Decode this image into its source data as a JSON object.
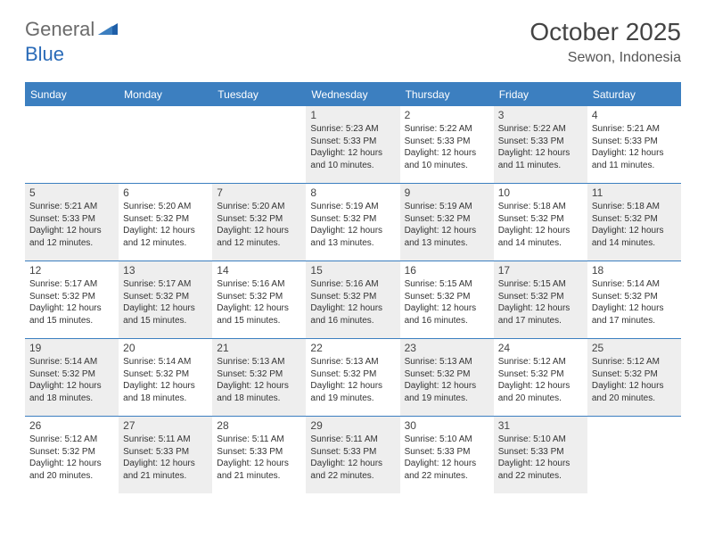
{
  "brand": {
    "part1": "General",
    "part2": "Blue"
  },
  "title": "October 2025",
  "location": "Sewon, Indonesia",
  "colors": {
    "header_bg": "#3c7fc0",
    "header_text": "#ffffff",
    "odd_bg": "#eeeeee",
    "even_bg": "#ffffff",
    "border": "#3c7fc0",
    "brand_gray": "#6b6b6b",
    "brand_blue": "#2a6bb8"
  },
  "weekdays": [
    "Sunday",
    "Monday",
    "Tuesday",
    "Wednesday",
    "Thursday",
    "Friday",
    "Saturday"
  ],
  "weeks": [
    [
      {
        "blank": true
      },
      {
        "blank": true
      },
      {
        "blank": true
      },
      {
        "day": "1",
        "sunrise": "Sunrise: 5:23 AM",
        "sunset": "Sunset: 5:33 PM",
        "daylight": "Daylight: 12 hours and 10 minutes."
      },
      {
        "day": "2",
        "sunrise": "Sunrise: 5:22 AM",
        "sunset": "Sunset: 5:33 PM",
        "daylight": "Daylight: 12 hours and 10 minutes."
      },
      {
        "day": "3",
        "sunrise": "Sunrise: 5:22 AM",
        "sunset": "Sunset: 5:33 PM",
        "daylight": "Daylight: 12 hours and 11 minutes."
      },
      {
        "day": "4",
        "sunrise": "Sunrise: 5:21 AM",
        "sunset": "Sunset: 5:33 PM",
        "daylight": "Daylight: 12 hours and 11 minutes."
      }
    ],
    [
      {
        "day": "5",
        "sunrise": "Sunrise: 5:21 AM",
        "sunset": "Sunset: 5:33 PM",
        "daylight": "Daylight: 12 hours and 12 minutes."
      },
      {
        "day": "6",
        "sunrise": "Sunrise: 5:20 AM",
        "sunset": "Sunset: 5:32 PM",
        "daylight": "Daylight: 12 hours and 12 minutes."
      },
      {
        "day": "7",
        "sunrise": "Sunrise: 5:20 AM",
        "sunset": "Sunset: 5:32 PM",
        "daylight": "Daylight: 12 hours and 12 minutes."
      },
      {
        "day": "8",
        "sunrise": "Sunrise: 5:19 AM",
        "sunset": "Sunset: 5:32 PM",
        "daylight": "Daylight: 12 hours and 13 minutes."
      },
      {
        "day": "9",
        "sunrise": "Sunrise: 5:19 AM",
        "sunset": "Sunset: 5:32 PM",
        "daylight": "Daylight: 12 hours and 13 minutes."
      },
      {
        "day": "10",
        "sunrise": "Sunrise: 5:18 AM",
        "sunset": "Sunset: 5:32 PM",
        "daylight": "Daylight: 12 hours and 14 minutes."
      },
      {
        "day": "11",
        "sunrise": "Sunrise: 5:18 AM",
        "sunset": "Sunset: 5:32 PM",
        "daylight": "Daylight: 12 hours and 14 minutes."
      }
    ],
    [
      {
        "day": "12",
        "sunrise": "Sunrise: 5:17 AM",
        "sunset": "Sunset: 5:32 PM",
        "daylight": "Daylight: 12 hours and 15 minutes."
      },
      {
        "day": "13",
        "sunrise": "Sunrise: 5:17 AM",
        "sunset": "Sunset: 5:32 PM",
        "daylight": "Daylight: 12 hours and 15 minutes."
      },
      {
        "day": "14",
        "sunrise": "Sunrise: 5:16 AM",
        "sunset": "Sunset: 5:32 PM",
        "daylight": "Daylight: 12 hours and 15 minutes."
      },
      {
        "day": "15",
        "sunrise": "Sunrise: 5:16 AM",
        "sunset": "Sunset: 5:32 PM",
        "daylight": "Daylight: 12 hours and 16 minutes."
      },
      {
        "day": "16",
        "sunrise": "Sunrise: 5:15 AM",
        "sunset": "Sunset: 5:32 PM",
        "daylight": "Daylight: 12 hours and 16 minutes."
      },
      {
        "day": "17",
        "sunrise": "Sunrise: 5:15 AM",
        "sunset": "Sunset: 5:32 PM",
        "daylight": "Daylight: 12 hours and 17 minutes."
      },
      {
        "day": "18",
        "sunrise": "Sunrise: 5:14 AM",
        "sunset": "Sunset: 5:32 PM",
        "daylight": "Daylight: 12 hours and 17 minutes."
      }
    ],
    [
      {
        "day": "19",
        "sunrise": "Sunrise: 5:14 AM",
        "sunset": "Sunset: 5:32 PM",
        "daylight": "Daylight: 12 hours and 18 minutes."
      },
      {
        "day": "20",
        "sunrise": "Sunrise: 5:14 AM",
        "sunset": "Sunset: 5:32 PM",
        "daylight": "Daylight: 12 hours and 18 minutes."
      },
      {
        "day": "21",
        "sunrise": "Sunrise: 5:13 AM",
        "sunset": "Sunset: 5:32 PM",
        "daylight": "Daylight: 12 hours and 18 minutes."
      },
      {
        "day": "22",
        "sunrise": "Sunrise: 5:13 AM",
        "sunset": "Sunset: 5:32 PM",
        "daylight": "Daylight: 12 hours and 19 minutes."
      },
      {
        "day": "23",
        "sunrise": "Sunrise: 5:13 AM",
        "sunset": "Sunset: 5:32 PM",
        "daylight": "Daylight: 12 hours and 19 minutes."
      },
      {
        "day": "24",
        "sunrise": "Sunrise: 5:12 AM",
        "sunset": "Sunset: 5:32 PM",
        "daylight": "Daylight: 12 hours and 20 minutes."
      },
      {
        "day": "25",
        "sunrise": "Sunrise: 5:12 AM",
        "sunset": "Sunset: 5:32 PM",
        "daylight": "Daylight: 12 hours and 20 minutes."
      }
    ],
    [
      {
        "day": "26",
        "sunrise": "Sunrise: 5:12 AM",
        "sunset": "Sunset: 5:32 PM",
        "daylight": "Daylight: 12 hours and 20 minutes."
      },
      {
        "day": "27",
        "sunrise": "Sunrise: 5:11 AM",
        "sunset": "Sunset: 5:33 PM",
        "daylight": "Daylight: 12 hours and 21 minutes."
      },
      {
        "day": "28",
        "sunrise": "Sunrise: 5:11 AM",
        "sunset": "Sunset: 5:33 PM",
        "daylight": "Daylight: 12 hours and 21 minutes."
      },
      {
        "day": "29",
        "sunrise": "Sunrise: 5:11 AM",
        "sunset": "Sunset: 5:33 PM",
        "daylight": "Daylight: 12 hours and 22 minutes."
      },
      {
        "day": "30",
        "sunrise": "Sunrise: 5:10 AM",
        "sunset": "Sunset: 5:33 PM",
        "daylight": "Daylight: 12 hours and 22 minutes."
      },
      {
        "day": "31",
        "sunrise": "Sunrise: 5:10 AM",
        "sunset": "Sunset: 5:33 PM",
        "daylight": "Daylight: 12 hours and 22 minutes."
      },
      {
        "blank": true
      }
    ]
  ]
}
